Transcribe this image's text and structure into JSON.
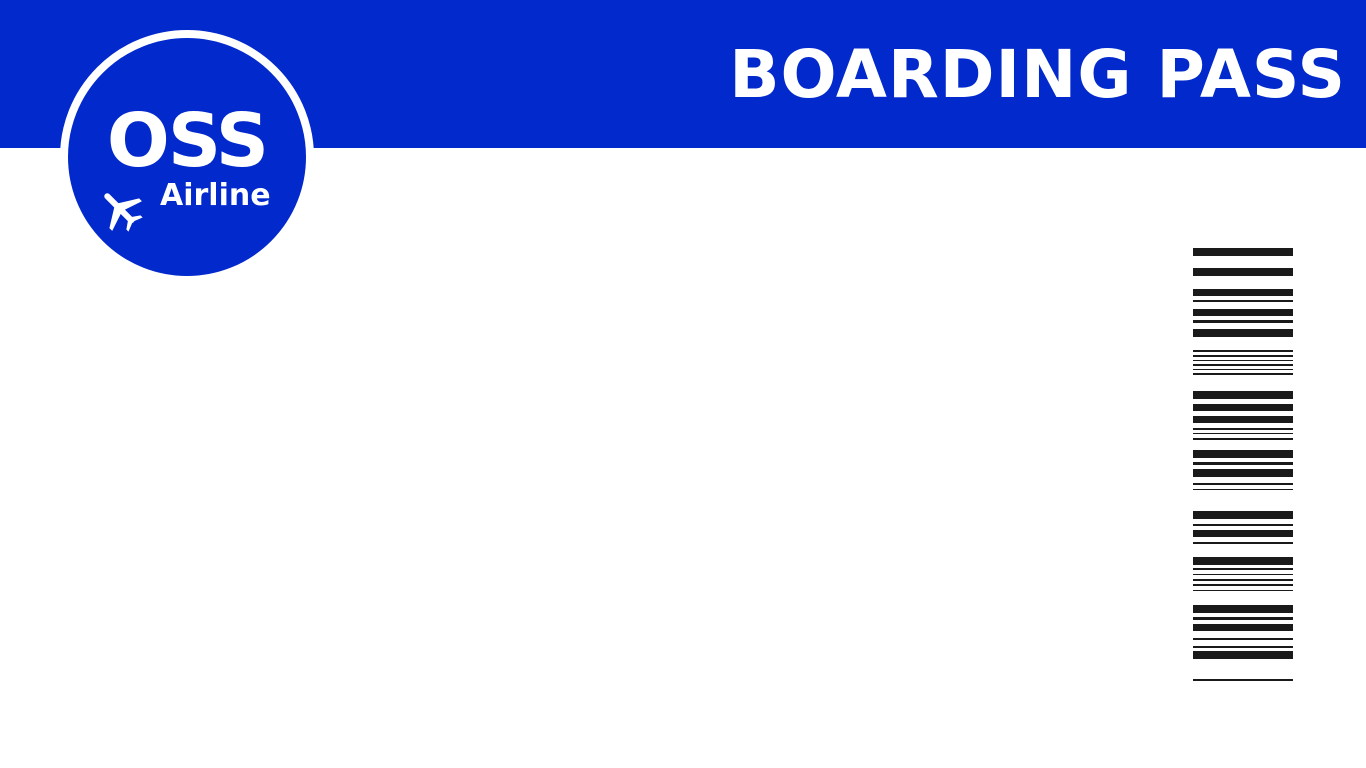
{
  "header": {
    "title": "BOARDING PASS",
    "band_color": "#0229cc"
  },
  "logo": {
    "name": "OSS",
    "subtitle": "Airline",
    "icon": "airplane-icon",
    "color": "#0229cc"
  },
  "barcode": {
    "icon": "barcode-icon",
    "color": "#1a1a1a"
  }
}
